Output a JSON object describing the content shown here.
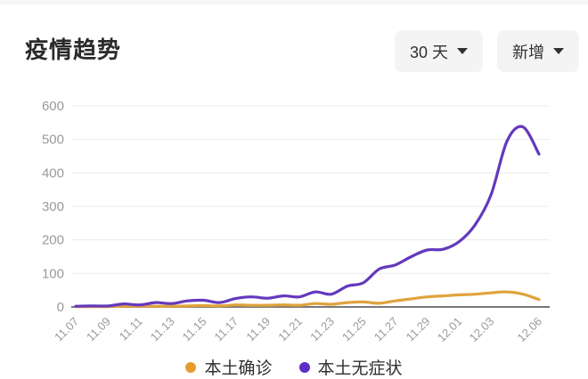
{
  "page": {
    "background": "#ffffff",
    "top_strip_color": "#f6f6f7"
  },
  "header": {
    "title": "疫情趋势",
    "controls": [
      {
        "id": "range",
        "label": "30 天",
        "icon": "caret-down-icon"
      },
      {
        "id": "metric",
        "label": "新增",
        "icon": "caret-down-icon"
      }
    ]
  },
  "chart_data": {
    "type": "line",
    "title": "疫情趋势",
    "smooth": true,
    "grid": true,
    "legend_position": "bottom",
    "xlabel": "",
    "ylabel": "",
    "ylim": [
      0,
      600
    ],
    "yticks": [
      0,
      100,
      200,
      300,
      400,
      500,
      600
    ],
    "x": [
      "11.07",
      "11.08",
      "11.09",
      "11.10",
      "11.11",
      "11.12",
      "11.13",
      "11.14",
      "11.15",
      "11.16",
      "11.17",
      "11.18",
      "11.19",
      "11.20",
      "11.21",
      "11.22",
      "11.23",
      "11.24",
      "11.25",
      "11.26",
      "11.27",
      "11.28",
      "11.29",
      "11.30",
      "12.01",
      "12.02",
      "12.03",
      "12.04",
      "12.05",
      "12.06"
    ],
    "x_visible_ticks": [
      "11.07",
      "11.09",
      "11.11",
      "11.13",
      "11.15",
      "11.17",
      "11.19",
      "11.21",
      "11.23",
      "11.25",
      "11.27",
      "11.29",
      "12.01",
      "12.03",
      "12.06"
    ],
    "series": [
      {
        "name": "本土确诊",
        "color": "#E0A33C",
        "values": [
          1,
          1,
          1,
          2,
          2,
          2,
          2,
          3,
          4,
          3,
          6,
          5,
          5,
          6,
          5,
          10,
          8,
          13,
          15,
          11,
          18,
          24,
          30,
          33,
          36,
          38,
          42,
          45,
          38,
          22
        ]
      },
      {
        "name": "本土无症状",
        "color": "#6438BE",
        "values": [
          2,
          3,
          3,
          9,
          6,
          13,
          10,
          18,
          20,
          13,
          25,
          30,
          26,
          33,
          30,
          45,
          38,
          62,
          72,
          113,
          125,
          150,
          170,
          172,
          195,
          245,
          335,
          495,
          537,
          456
        ]
      }
    ],
    "axis_colors": {
      "grid_line": "#ececec",
      "axis_line": "#787878",
      "tick_label": "#9a9a9a"
    }
  },
  "legend": {
    "items": [
      {
        "label": "本土确诊",
        "color": "#E89B2D"
      },
      {
        "label": "本土无症状",
        "color": "#5B2FC4"
      }
    ]
  }
}
